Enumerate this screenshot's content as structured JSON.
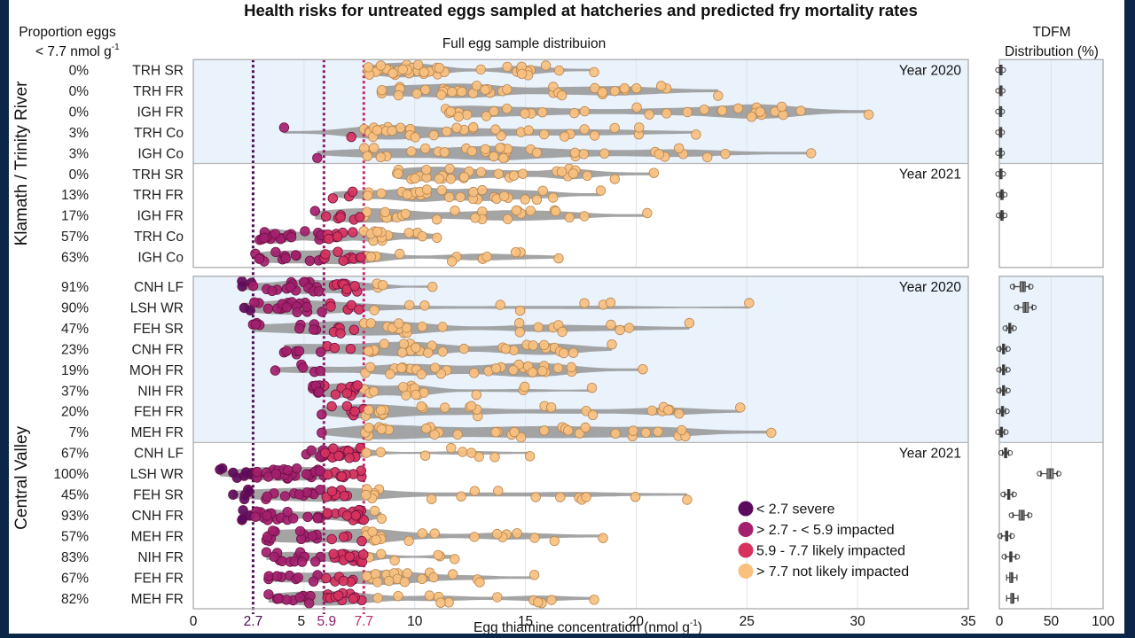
{
  "chart_data": {
    "type": "scatter",
    "title": "Health risks for untreated eggs sampled at hatcheries and predicted fry mortality rates",
    "main_subtitle": "Full egg sample distribuion",
    "proportion_header_line1": "Proportion eggs",
    "proportion_header_line2": "< 7.7 nmol g",
    "proportion_header_sup": "-1",
    "xlabel": "Egg thiamine concentration (nmol g",
    "xlabel_sup": "-1",
    "xlabel_close": ")",
    "xlim": [
      0,
      35
    ],
    "xticks": [
      0,
      5,
      10,
      15,
      20,
      25,
      30,
      35
    ],
    "threshold_lines": [
      {
        "value": 2.7,
        "label": "2.7",
        "color": "#4b0f52"
      },
      {
        "value": 5.9,
        "label": "5.9",
        "color": "#8e1a6b"
      },
      {
        "value": 7.7,
        "label": "7.7",
        "color": "#c8286a"
      }
    ],
    "tdfm_title_line1": "TDFM",
    "tdfm_title_line2": "Distribution (%)",
    "tdfm_xlim": [
      0,
      100
    ],
    "tdfm_xticks": [
      0,
      50,
      100
    ],
    "legend": [
      {
        "label": "< 2.7 severe",
        "color": "#5c0a5e"
      },
      {
        "label": "> 2.7 - < 5.9 impacted",
        "color": "#a3206e"
      },
      {
        "label": "5.9 - 7.7 likely impacted",
        "color": "#d6325d"
      },
      {
        "label": "> 7.7 not likely impacted",
        "color": "#f9c07f"
      }
    ],
    "legend_position": "bottom-right",
    "regions": [
      {
        "name": "Klamath / Trinity River",
        "panels": [
          {
            "year_label": "Year 2020",
            "shaded": true,
            "rows": [
              {
                "label": "TRH SR",
                "proportion": "0%",
                "min": 7.9,
                "max": 18.1,
                "n": 38,
                "tdfm": {
                  "median": 1,
                  "q1": 0.5,
                  "q3": 1.5,
                  "lo": 0,
                  "hi": 2.5
                }
              },
              {
                "label": "TRH FR",
                "proportion": "0%",
                "min": 8.5,
                "max": 23.7,
                "n": 36,
                "tdfm": {
                  "median": 1,
                  "q1": 0.5,
                  "q3": 1.5,
                  "lo": 0,
                  "hi": 2
                }
              },
              {
                "label": "IGH FR",
                "proportion": "0%",
                "min": 11.4,
                "max": 30.5,
                "n": 32,
                "tdfm": {
                  "median": 0.5,
                  "q1": 0.2,
                  "q3": 0.8,
                  "lo": 0,
                  "hi": 1.5
                }
              },
              {
                "label": "TRH Co",
                "proportion": "3%",
                "min": 4.1,
                "max": 22.7,
                "n": 36,
                "tdfm": {
                  "median": 0.5,
                  "q1": 0.2,
                  "q3": 0.8,
                  "lo": 0,
                  "hi": 1.5
                }
              },
              {
                "label": "IGH Co",
                "proportion": "3%",
                "min": 5.6,
                "max": 27.9,
                "n": 36,
                "tdfm": {
                  "median": 0.5,
                  "q1": 0.2,
                  "q3": 0.8,
                  "lo": 0,
                  "hi": 1.5
                }
              }
            ]
          },
          {
            "year_label": "Year 2021",
            "shaded": false,
            "rows": [
              {
                "label": "TRH SR",
                "proportion": "0%",
                "min": 9.2,
                "max": 20.8,
                "n": 30,
                "tdfm": {
                  "median": 1,
                  "q1": 0.5,
                  "q3": 1.5,
                  "lo": 0,
                  "hi": 2.5
                }
              },
              {
                "label": "TRH FR",
                "proportion": "13%",
                "min": 6.3,
                "max": 18.4,
                "n": 30,
                "tdfm": {
                  "median": 2,
                  "q1": 1.5,
                  "q3": 2.5,
                  "lo": 0.5,
                  "hi": 4
                }
              },
              {
                "label": "IGH FR",
                "proportion": "17%",
                "min": 5.5,
                "max": 20.5,
                "n": 30,
                "tdfm": {
                  "median": 2,
                  "q1": 1.5,
                  "q3": 2.5,
                  "lo": 0.5,
                  "hi": 4
                }
              },
              {
                "label": "TRH Co",
                "proportion": "57%",
                "min": 3.0,
                "max": 11.0,
                "n": 40,
                "tdfm": null
              },
              {
                "label": "IGH Co",
                "proportion": "63%",
                "min": 2.8,
                "max": 16.5,
                "n": 34,
                "tdfm": null
              }
            ]
          }
        ]
      },
      {
        "name": "Central Valley",
        "panels": [
          {
            "year_label": "Year 2020",
            "shaded": true,
            "rows": [
              {
                "label": "CNH LF",
                "proportion": "91%",
                "min": 2.2,
                "max": 10.8,
                "n": 34,
                "tdfm": {
                  "median": 23,
                  "q1": 20,
                  "q3": 25,
                  "lo": 14,
                  "hi": 29
                }
              },
              {
                "label": "LSH WR",
                "proportion": "90%",
                "min": 2.3,
                "max": 25.1,
                "n": 34,
                "tdfm": {
                  "median": 25,
                  "q1": 23,
                  "q3": 28,
                  "lo": 18,
                  "hi": 32
                }
              },
              {
                "label": "FEH SR",
                "proportion": "47%",
                "min": 2.7,
                "max": 22.4,
                "n": 36,
                "tdfm": {
                  "median": 10,
                  "q1": 9,
                  "q3": 11,
                  "lo": 7,
                  "hi": 13
                }
              },
              {
                "label": "CNH FR",
                "proportion": "23%",
                "min": 4.1,
                "max": 18.9,
                "n": 36,
                "tdfm": {
                  "median": 4,
                  "q1": 3,
                  "q3": 5,
                  "lo": 1,
                  "hi": 7
                }
              },
              {
                "label": "MOH FR",
                "proportion": "19%",
                "min": 3.7,
                "max": 20.3,
                "n": 34,
                "tdfm": {
                  "median": 4,
                  "q1": 3,
                  "q3": 5,
                  "lo": 1,
                  "hi": 7
                }
              },
              {
                "label": "NIH FR",
                "proportion": "37%",
                "min": 5.4,
                "max": 18.0,
                "n": 34,
                "tdfm": {
                  "median": 4,
                  "q1": 3,
                  "q3": 5,
                  "lo": 1,
                  "hi": 7
                }
              },
              {
                "label": "FEH FR",
                "proportion": "20%",
                "min": 5.8,
                "max": 24.7,
                "n": 32,
                "tdfm": {
                  "median": 3,
                  "q1": 2,
                  "q3": 4,
                  "lo": 0.5,
                  "hi": 6
                }
              },
              {
                "label": "MEH FR",
                "proportion": "7%",
                "min": 5.8,
                "max": 26.1,
                "n": 34,
                "tdfm": {
                  "median": 2,
                  "q1": 1,
                  "q3": 3,
                  "lo": 0,
                  "hi": 5
                }
              }
            ]
          },
          {
            "year_label": "Year 2021",
            "shaded": false,
            "rows": [
              {
                "label": "CNH LF",
                "proportion": "67%",
                "min": 5.1,
                "max": 15.2,
                "n": 34,
                "tdfm": {
                  "median": 6,
                  "q1": 5,
                  "q3": 7,
                  "lo": 3,
                  "hi": 9
                }
              },
              {
                "label": "LSH WR",
                "proportion": "100%",
                "min": 1.2,
                "max": 7.6,
                "n": 44,
                "tdfm": {
                  "median": 49,
                  "q1": 46,
                  "q3": 52,
                  "lo": 40,
                  "hi": 56
                }
              },
              {
                "label": "FEH SR",
                "proportion": "45%",
                "min": 1.8,
                "max": 22.3,
                "n": 40,
                "tdfm": {
                  "median": 9,
                  "q1": 8,
                  "q3": 10,
                  "lo": 5,
                  "hi": 13
                }
              },
              {
                "label": "CNH FR",
                "proportion": "93%",
                "min": 2.2,
                "max": 8.5,
                "n": 38,
                "tdfm": {
                  "median": 22,
                  "q1": 19,
                  "q3": 24,
                  "lo": 13,
                  "hi": 28
                }
              },
              {
                "label": "MEH FR",
                "proportion": "57%",
                "min": 3.3,
                "max": 18.5,
                "n": 36,
                "tdfm": {
                  "median": 7,
                  "q1": 6,
                  "q3": 8,
                  "lo": 2,
                  "hi": 11
                }
              },
              {
                "label": "NIH FR",
                "proportion": "83%",
                "min": 3.3,
                "max": 11.8,
                "n": 34,
                "tdfm": {
                  "median": 11,
                  "q1": 10,
                  "q3": 12,
                  "lo": 6,
                  "hi": 16
                }
              },
              {
                "label": "FEH FR",
                "proportion": "67%",
                "min": 3.4,
                "max": 15.4,
                "n": 34,
                "tdfm": {
                  "median": 12,
                  "q1": 10,
                  "q3": 13,
                  "lo": 7,
                  "hi": 17
                }
              },
              {
                "label": "MEH FR",
                "proportion": "82%",
                "min": 3.4,
                "max": 18.1,
                "n": 34,
                "tdfm": {
                  "median": 13,
                  "q1": 11,
                  "q3": 14,
                  "lo": 7,
                  "hi": 18
                }
              }
            ]
          }
        ]
      }
    ]
  }
}
